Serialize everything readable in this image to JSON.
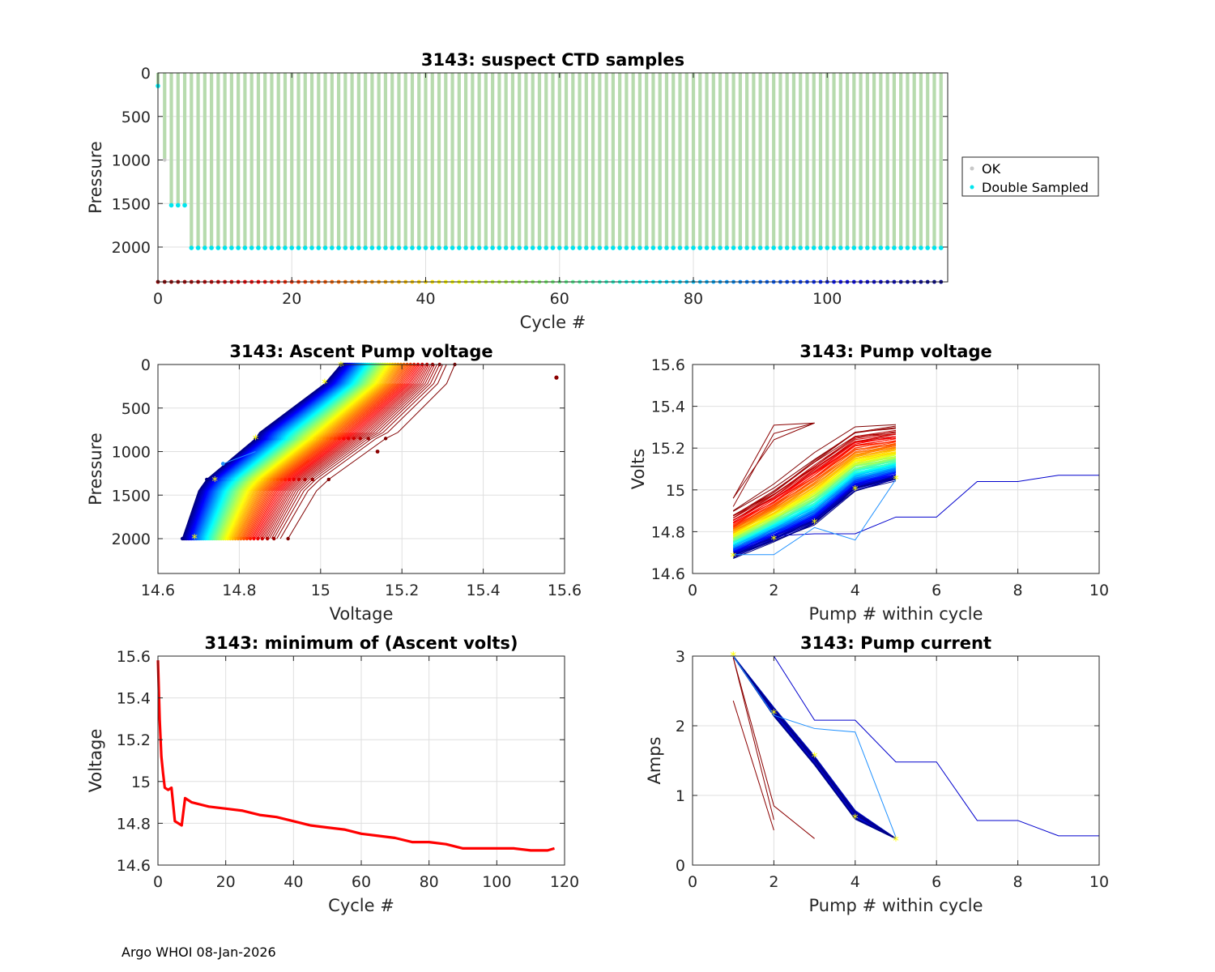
{
  "footer": "Argo WHOI 08-Jan-2026",
  "colors": {
    "ok": "#c8c8c8",
    "double": "#00e5ee",
    "bar": "#b9dcb0",
    "line_min": "#ff0000",
    "star": "#ffff00",
    "grid": "#dcdcdc"
  },
  "chart_data": [
    {
      "id": "ctd",
      "type": "scatter",
      "title": "3143: suspect CTD samples",
      "xlabel": "Cycle #",
      "ylabel": "Pressure",
      "xlim": [
        0,
        118
      ],
      "ylim": [
        0,
        2400
      ],
      "y_reversed": true,
      "xticks": [
        0,
        20,
        40,
        60,
        80,
        100
      ],
      "yticks": [
        0,
        500,
        1000,
        1500,
        2000
      ],
      "legend": [
        "OK",
        "Double Sampled"
      ],
      "legend_position": "outside-right",
      "n_cycles": 118,
      "profile_depths": {
        "cycle_0": 150,
        "cycle_1": 1000,
        "cycles_2_4": 1520,
        "cycles_5_117": 2010
      },
      "double_sampled_pressure": 2010,
      "bottom_marker_pressure": 2400
    },
    {
      "id": "ascent",
      "type": "line",
      "title": "3143: Ascent Pump voltage",
      "xlabel": "Voltage",
      "ylabel": "Pressure",
      "xlim": [
        14.6,
        15.6
      ],
      "ylim": [
        0,
        2400
      ],
      "y_reversed": true,
      "xticks": [
        14.6,
        14.8,
        15.0,
        15.2,
        15.4,
        15.6
      ],
      "xtick_labels": [
        "14.6",
        "14.8",
        "15",
        "15.2",
        "15.4",
        "15.6"
      ],
      "yticks": [
        0,
        500,
        1000,
        1500,
        2000
      ],
      "profile_pressures": [
        2000,
        1450,
        1320,
        850,
        780,
        220,
        0
      ],
      "profile_volts_first": [
        14.92,
        14.99,
        15.02,
        15.16,
        15.19,
        15.31,
        15.33
      ],
      "profile_volts_last": [
        14.66,
        14.7,
        14.72,
        14.84,
        14.85,
        15.01,
        15.05
      ],
      "outlier": {
        "voltage": 15.58,
        "pressure": 150
      }
    },
    {
      "id": "pumpv",
      "type": "line",
      "title": "3143: Pump voltage",
      "xlabel": "Pump # within cycle",
      "ylabel": "Volts",
      "xlim": [
        0,
        10
      ],
      "ylim": [
        14.6,
        15.6
      ],
      "xticks": [
        0,
        2,
        4,
        6,
        8,
        10
      ],
      "yticks": [
        14.6,
        14.8,
        15.0,
        15.2,
        15.4,
        15.6
      ],
      "ytick_labels": [
        "14.6",
        "14.8",
        "15",
        "15.2",
        "15.4",
        "15.6"
      ],
      "series_first": [
        14.9,
        15.02,
        15.17,
        15.3,
        15.32
      ],
      "series_last": [
        14.68,
        14.76,
        14.84,
        15.0,
        15.05
      ],
      "long_profile": {
        "x": [
          1,
          2,
          3,
          4,
          5,
          6,
          7,
          8,
          9,
          10
        ],
        "y": [
          14.69,
          14.78,
          14.79,
          14.79,
          14.87,
          14.87,
          15.04,
          15.04,
          15.07,
          15.07
        ]
      }
    },
    {
      "id": "minv",
      "type": "line",
      "title": "3143: minimum of (Ascent volts)",
      "xlabel": "Cycle #",
      "ylabel": "Voltage",
      "xlim": [
        0,
        120
      ],
      "ylim": [
        14.6,
        15.6
      ],
      "xticks": [
        0,
        20,
        40,
        60,
        80,
        100,
        120
      ],
      "yticks": [
        14.6,
        14.8,
        15.0,
        15.2,
        15.4,
        15.6
      ],
      "ytick_labels": [
        "14.6",
        "14.8",
        "15",
        "15.2",
        "15.4",
        "15.6"
      ],
      "x": [
        0,
        0.5,
        1,
        1.5,
        2,
        3,
        4,
        5,
        6,
        7,
        8,
        10,
        15,
        20,
        25,
        30,
        35,
        40,
        45,
        50,
        55,
        60,
        65,
        70,
        75,
        80,
        85,
        90,
        95,
        100,
        105,
        110,
        115,
        117
      ],
      "values": [
        15.58,
        15.3,
        15.12,
        15.04,
        14.97,
        14.96,
        14.97,
        14.81,
        14.8,
        14.79,
        14.92,
        14.9,
        14.88,
        14.87,
        14.86,
        14.84,
        14.83,
        14.81,
        14.79,
        14.78,
        14.77,
        14.75,
        14.74,
        14.73,
        14.71,
        14.71,
        14.7,
        14.68,
        14.68,
        14.68,
        14.68,
        14.67,
        14.67,
        14.68
      ]
    },
    {
      "id": "pumpc",
      "type": "line",
      "title": "3143: Pump current",
      "xlabel": "Pump # within cycle",
      "ylabel": "Amps",
      "xlim": [
        0,
        10
      ],
      "ylim": [
        0,
        3
      ],
      "xticks": [
        0,
        2,
        4,
        6,
        8,
        10
      ],
      "yticks": [
        0,
        1,
        2,
        3
      ],
      "series_typical": [
        3.0,
        2.2,
        1.5,
        0.72,
        0.38
      ],
      "long_profile": {
        "x": [
          1,
          2,
          3,
          4,
          5,
          6,
          7,
          8,
          9,
          10
        ],
        "y": [
          3.0,
          3.0,
          2.08,
          2.08,
          1.48,
          1.48,
          0.64,
          0.64,
          0.42,
          0.42
        ]
      },
      "light_blue_profile": {
        "x": [
          1,
          2,
          3,
          4,
          5
        ],
        "y": [
          3.0,
          2.15,
          1.96,
          1.91,
          0.4
        ]
      }
    }
  ]
}
